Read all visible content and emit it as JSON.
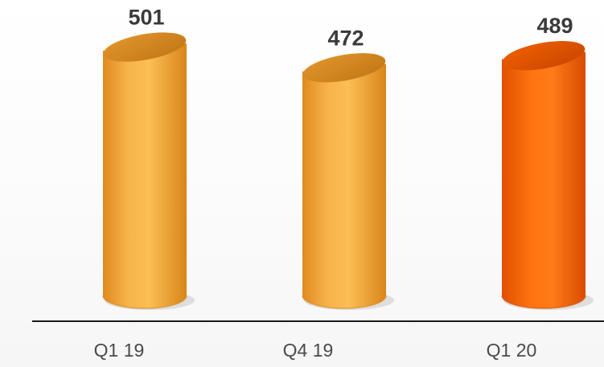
{
  "chart_data": {
    "type": "bar",
    "categories": [
      "Q1 19",
      "Q4 19",
      "Q1 20"
    ],
    "values": [
      501,
      472,
      489
    ],
    "ylim": [
      0,
      510
    ],
    "bar_style": "3d-cylinder",
    "grid": false,
    "legend": "none",
    "colors": [
      "#f2a23a",
      "#f2a23a",
      "#ff6a00"
    ],
    "highlight_index": 2,
    "axis_line_color": "#1a1a1a"
  }
}
